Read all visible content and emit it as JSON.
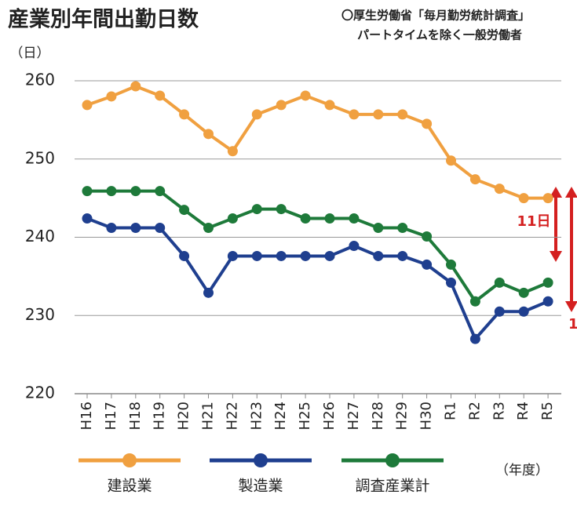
{
  "chart_data": {
    "type": "line",
    "title": "産業別年間出勤日数",
    "source": [
      "〇厚生労働省「毎月勤労統計調査」",
      "パートタイムを除く一般労働者"
    ],
    "y_label": "（日）",
    "x_label": "（年度）",
    "categories": [
      "H16",
      "H17",
      "H18",
      "H19",
      "H20",
      "H21",
      "H22",
      "H23",
      "H24",
      "H25",
      "H26",
      "H27",
      "H28",
      "H29",
      "H30",
      "R1",
      "R2",
      "R3",
      "R4",
      "R5"
    ],
    "series": [
      {
        "name": "建設業",
        "color": "#f0a040",
        "values": [
          256.9,
          258.0,
          259.3,
          258.1,
          255.7,
          253.2,
          251.0,
          255.7,
          256.9,
          258.1,
          256.9,
          255.7,
          255.7,
          255.7,
          254.5,
          249.8,
          247.4,
          246.2,
          245.0,
          245.0
        ]
      },
      {
        "name": "製造業",
        "color": "#1f3f8f",
        "values": [
          242.4,
          241.2,
          241.2,
          241.2,
          237.6,
          232.9,
          237.6,
          237.6,
          237.6,
          237.6,
          237.6,
          238.9,
          237.6,
          237.6,
          236.5,
          234.2,
          227.0,
          230.5,
          230.5,
          231.8
        ]
      },
      {
        "name": "調査産業計",
        "color": "#1e7a3a",
        "values": [
          245.9,
          245.9,
          245.9,
          245.9,
          243.5,
          241.2,
          242.4,
          243.6,
          243.6,
          242.4,
          242.4,
          242.4,
          241.2,
          241.2,
          240.1,
          236.5,
          231.8,
          234.2,
          232.9,
          234.2
        ]
      }
    ],
    "annotations": [
      "11日",
      "1"
    ],
    "ylim": [
      220,
      260
    ],
    "yticks": [
      220,
      230,
      240,
      250,
      260
    ],
    "grid": true
  }
}
